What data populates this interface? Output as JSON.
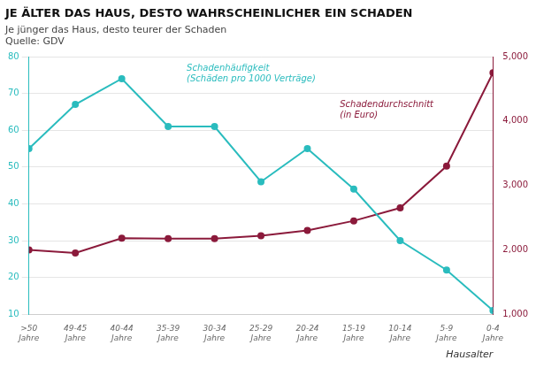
{
  "chart_data": {
    "type": "line",
    "title": "JE ÄLTER DAS HAUS, DESTO WAHRSCHEINLICHER EIN SCHADEN",
    "subtitle": "Je jünger das Haus, desto teurer der Schaden",
    "annotations": [
      "Quelle: GDV"
    ],
    "x_label": "Hausalter",
    "categories": [
      ">50\nJahre",
      "49-45\nJahre",
      "40-44\nJahre",
      "35-39\nJahre",
      "30-34\nJahre",
      "25-29\nJahre",
      "20-24\nJahre",
      "15-19\nJahre",
      "10-14\nJahre",
      "5-9\nJahre",
      "0-4\nJahre"
    ],
    "series": [
      {
        "name": "Schadenhäufigkeit\n(Schäden pro 1000 Verträge)",
        "color": "#2ABCBE",
        "marker": "circle",
        "values": [
          55,
          67,
          74,
          61,
          61,
          46,
          55,
          44,
          30,
          22,
          11
        ]
      },
      {
        "name": "Schadendurchschnitt\n(in Euro)",
        "color": "#8B1A3B",
        "marker": "circle",
        "axis": "y2",
        "values": [
          2000,
          1950,
          2180,
          2175,
          2175,
          2220,
          2300,
          2450,
          2650,
          3300,
          4750
        ]
      }
    ],
    "ylim": [
      10,
      80
    ],
    "yticks": [
      10,
      20,
      30,
      40,
      50,
      60,
      70,
      80
    ],
    "y2lim": [
      1000,
      5000
    ],
    "y2ticks": [
      1000,
      2000,
      3000,
      4000,
      5000
    ],
    "grid": true
  }
}
